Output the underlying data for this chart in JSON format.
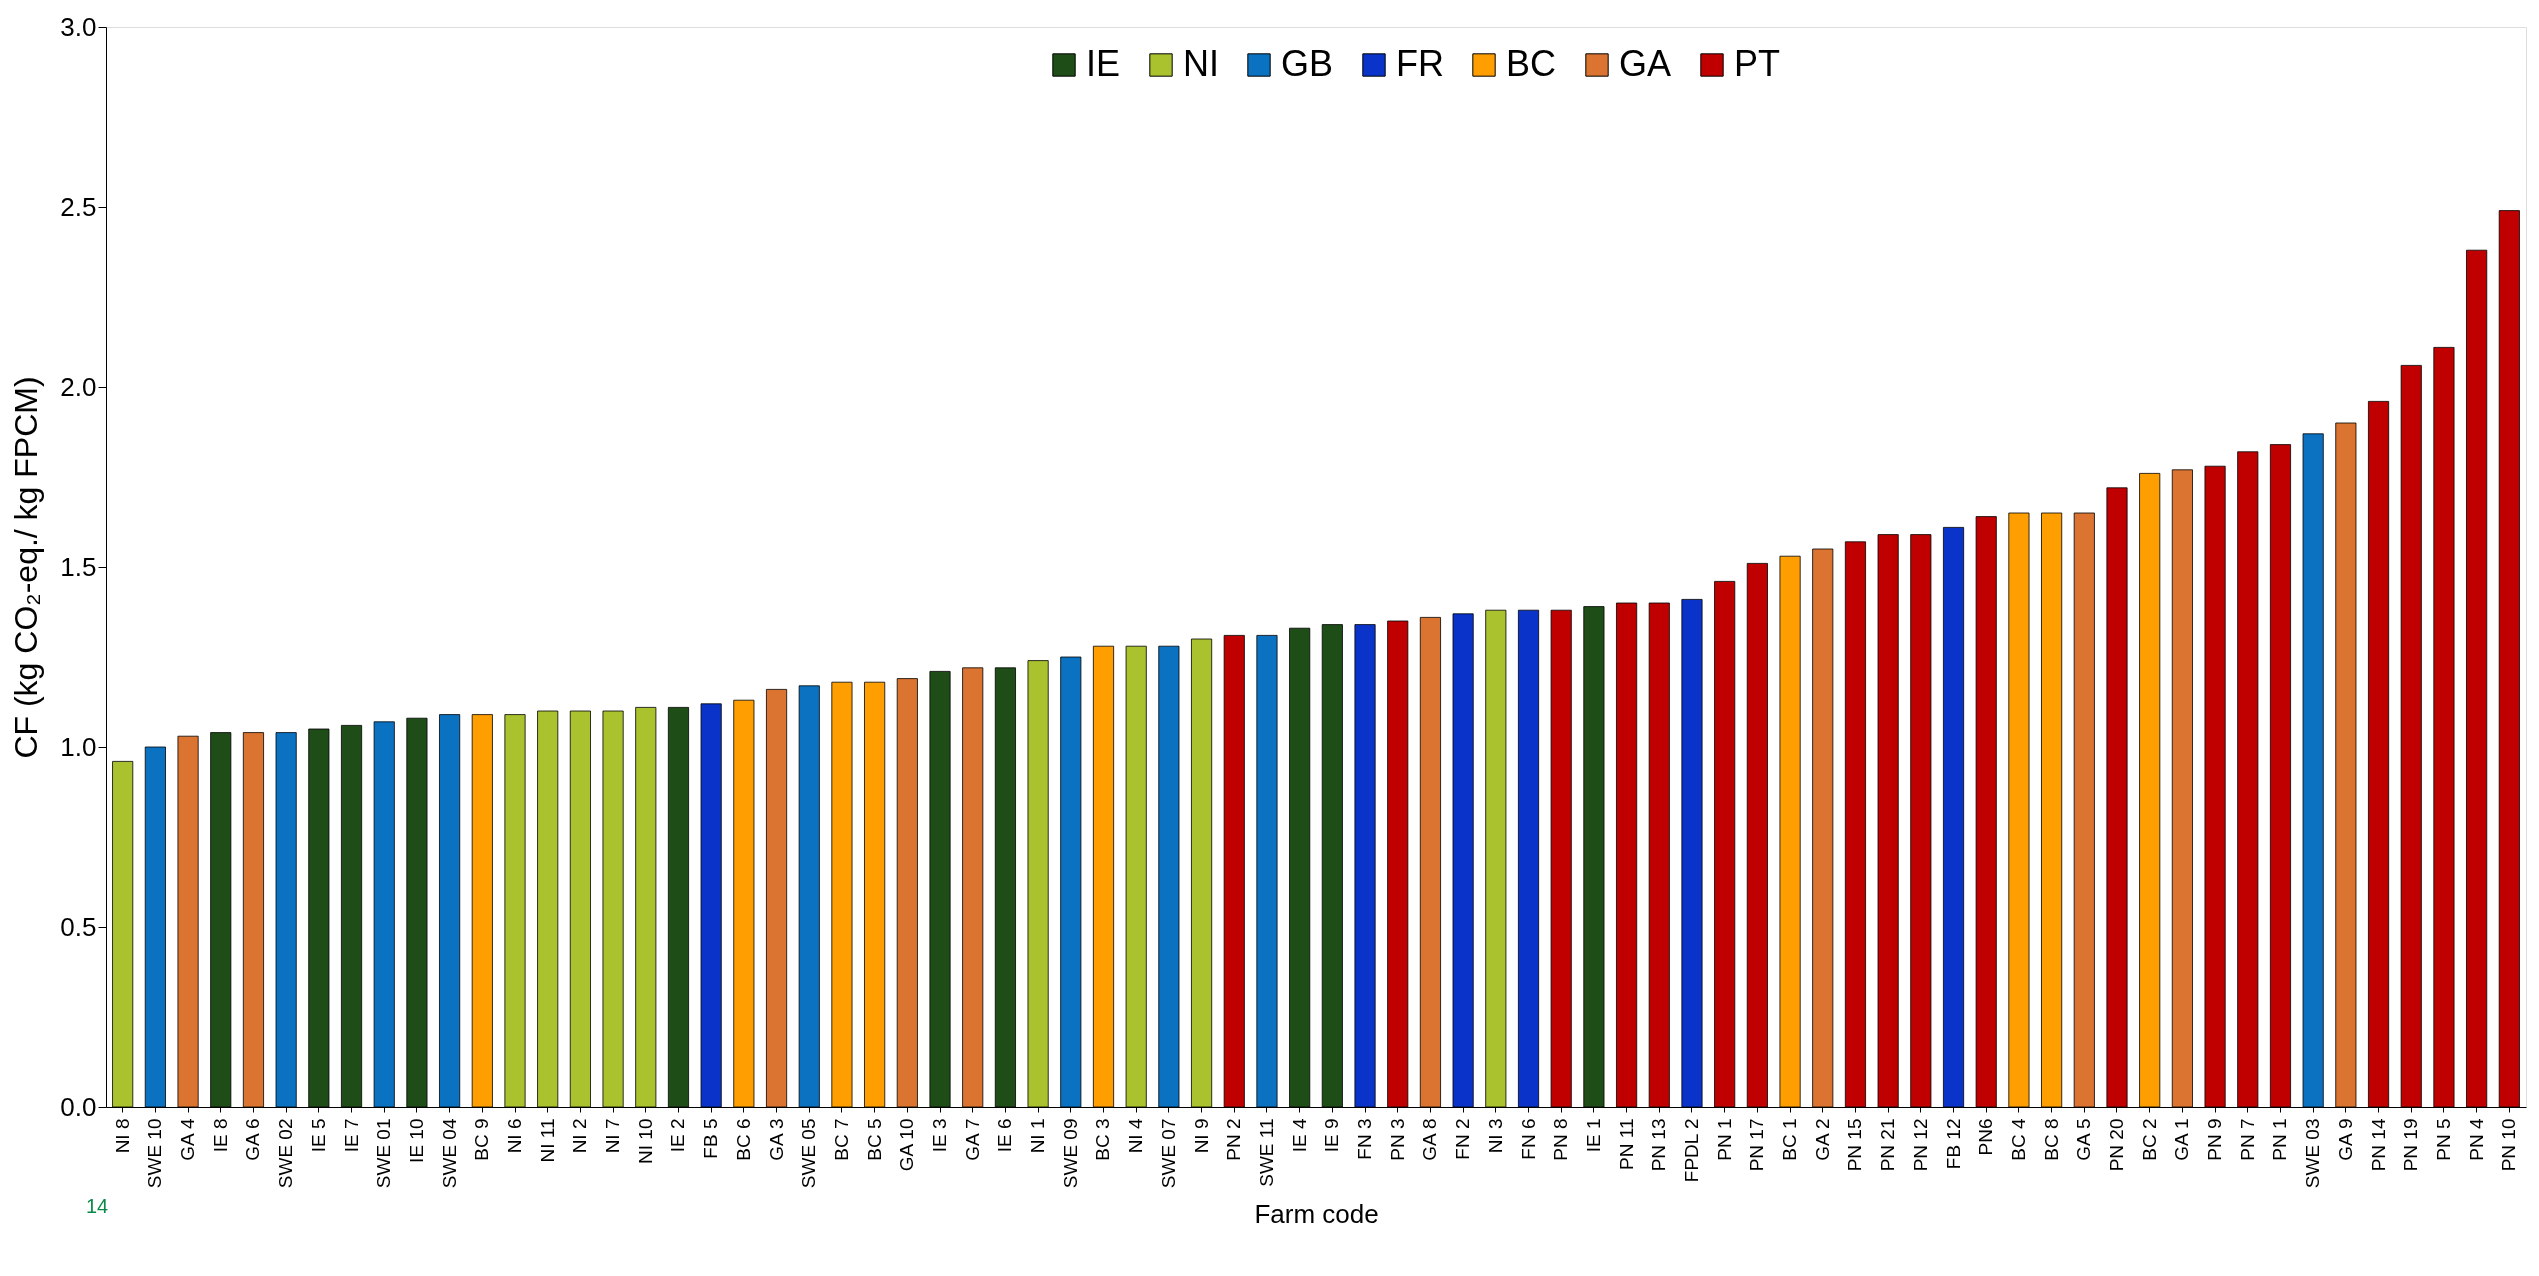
{
  "chart_data": {
    "type": "bar",
    "xlabel": "Farm code",
    "ylabel": "CF (kg CO₂-eq./ kg FPCM)",
    "categories": [
      "NI 8",
      "SWE 10",
      "GA 4",
      "IE 8",
      "GA 6",
      "SWE 02",
      "IE 5",
      "IE 7",
      "SWE 01",
      "IE 10",
      "SWE 04",
      "BC 9",
      "NI 6",
      "NI 11",
      "NI 2",
      "NI 7",
      "NI 10",
      "IE 2",
      "FB 5",
      "BC 6",
      "GA 3",
      "SWE 05",
      "BC 7",
      "BC 5",
      "GA 10",
      "IE 3",
      "GA 7",
      "IE 6",
      "NI 1",
      "SWE 09",
      "BC 3",
      "NI 4",
      "SWE 07",
      "NI 9",
      "PN 2",
      "SWE 11",
      "IE 4",
      "IE 9",
      "FN 3",
      "PN 3",
      "GA 8",
      "FN 2",
      "NI 3",
      "FN 6",
      "PN 8",
      "IE 1",
      "PN 11",
      "PN 13",
      "FPDL 2",
      "PN 1",
      "PN 17",
      "BC 1",
      "GA 2",
      "PN 15",
      "PN 21",
      "PN 12",
      "FB 12",
      "PN6",
      "BC 4",
      "BC 8",
      "GA 5",
      "PN 20",
      "BC 2",
      "GA 1",
      "PN 9",
      "PN 7",
      "PN 1",
      "SWE 03",
      "GA 9",
      "PN 14",
      "PN 19",
      "PN 5",
      "PN 4",
      "PN 10"
    ],
    "series": [
      {
        "name": "IE",
        "color": "#1e4d18",
        "values": [
          null,
          null,
          null,
          1.04,
          null,
          null,
          1.05,
          1.06,
          null,
          1.08,
          null,
          null,
          null,
          null,
          null,
          null,
          null,
          1.11,
          null,
          null,
          null,
          null,
          null,
          null,
          null,
          1.21,
          null,
          1.22,
          null,
          null,
          null,
          null,
          null,
          null,
          null,
          null,
          1.33,
          1.34,
          null,
          null,
          null,
          null,
          null,
          null,
          null,
          1.39,
          null,
          null,
          null,
          null,
          null,
          null,
          null,
          null,
          null,
          null,
          null,
          null,
          null,
          null,
          null,
          null,
          null,
          null,
          null,
          null,
          null,
          null,
          null,
          null,
          null,
          null,
          null,
          null
        ]
      },
      {
        "name": "NI",
        "color": "#aac22e",
        "values": [
          0.96,
          null,
          null,
          null,
          null,
          null,
          null,
          null,
          null,
          null,
          null,
          null,
          1.09,
          1.1,
          1.1,
          1.1,
          1.11,
          null,
          null,
          null,
          null,
          null,
          null,
          null,
          null,
          null,
          null,
          null,
          1.24,
          null,
          null,
          1.28,
          null,
          1.3,
          null,
          null,
          null,
          null,
          null,
          null,
          null,
          null,
          1.38,
          null,
          null,
          null,
          null,
          null,
          null,
          null,
          null,
          null,
          null,
          null,
          null,
          null,
          null,
          null,
          null,
          null,
          null,
          null,
          null,
          null,
          null,
          null,
          null,
          null,
          null,
          null,
          null,
          null,
          null,
          null
        ]
      },
      {
        "name": "GB",
        "color": "#0b72c2",
        "values": [
          null,
          1.0,
          null,
          null,
          null,
          1.04,
          null,
          null,
          1.07,
          null,
          1.09,
          null,
          null,
          null,
          null,
          null,
          null,
          null,
          null,
          null,
          null,
          1.17,
          null,
          null,
          null,
          null,
          null,
          null,
          null,
          1.25,
          null,
          null,
          1.28,
          null,
          null,
          1.31,
          null,
          null,
          null,
          null,
          null,
          null,
          null,
          null,
          null,
          null,
          null,
          null,
          null,
          null,
          null,
          null,
          null,
          null,
          null,
          null,
          null,
          null,
          null,
          null,
          null,
          null,
          null,
          null,
          null,
          null,
          null,
          1.87,
          null,
          null,
          null,
          null,
          null,
          null
        ]
      },
      {
        "name": "FR",
        "color": "#0a34c9",
        "values": [
          null,
          null,
          null,
          null,
          null,
          null,
          null,
          null,
          null,
          null,
          null,
          null,
          null,
          null,
          null,
          null,
          null,
          null,
          1.12,
          null,
          null,
          null,
          null,
          null,
          null,
          null,
          null,
          null,
          null,
          null,
          null,
          null,
          null,
          null,
          null,
          null,
          null,
          null,
          1.34,
          null,
          null,
          1.37,
          null,
          1.38,
          null,
          null,
          null,
          null,
          1.41,
          null,
          null,
          null,
          null,
          null,
          null,
          null,
          1.61,
          null,
          null,
          null,
          null,
          null,
          null,
          null,
          null,
          null,
          null,
          null,
          null,
          null,
          null,
          null,
          null,
          null
        ]
      },
      {
        "name": "BC",
        "color": "#ff9e00",
        "values": [
          null,
          null,
          null,
          null,
          null,
          null,
          null,
          null,
          null,
          null,
          null,
          1.09,
          null,
          null,
          null,
          null,
          null,
          null,
          null,
          1.13,
          null,
          null,
          1.18,
          1.18,
          null,
          null,
          null,
          null,
          null,
          null,
          1.28,
          null,
          null,
          null,
          null,
          null,
          null,
          null,
          null,
          null,
          null,
          null,
          null,
          null,
          null,
          null,
          null,
          null,
          null,
          null,
          null,
          1.53,
          null,
          null,
          null,
          null,
          null,
          null,
          1.65,
          1.65,
          null,
          null,
          1.76,
          null,
          null,
          null,
          null,
          null,
          null,
          null,
          null,
          null,
          null,
          null
        ]
      },
      {
        "name": "GA",
        "color": "#db7430",
        "values": [
          null,
          null,
          1.03,
          null,
          1.04,
          null,
          null,
          null,
          null,
          null,
          null,
          null,
          null,
          null,
          null,
          null,
          null,
          null,
          null,
          null,
          1.16,
          null,
          null,
          null,
          1.19,
          null,
          1.22,
          null,
          null,
          null,
          null,
          null,
          null,
          null,
          null,
          null,
          null,
          null,
          null,
          null,
          1.36,
          null,
          null,
          null,
          null,
          null,
          null,
          null,
          null,
          null,
          null,
          null,
          1.55,
          null,
          null,
          null,
          null,
          null,
          null,
          null,
          1.65,
          null,
          null,
          1.77,
          null,
          null,
          null,
          null,
          1.9,
          null,
          null,
          null,
          null,
          null
        ]
      },
      {
        "name": "PT",
        "color": "#c00000",
        "values": [
          null,
          null,
          null,
          null,
          null,
          null,
          null,
          null,
          null,
          null,
          null,
          null,
          null,
          null,
          null,
          null,
          null,
          null,
          null,
          null,
          null,
          null,
          null,
          null,
          null,
          null,
          null,
          null,
          null,
          null,
          null,
          null,
          null,
          null,
          1.31,
          null,
          null,
          null,
          null,
          1.35,
          null,
          null,
          null,
          null,
          1.38,
          null,
          1.4,
          1.4,
          null,
          1.46,
          1.51,
          null,
          null,
          1.57,
          1.59,
          1.59,
          null,
          1.64,
          null,
          null,
          null,
          1.72,
          null,
          null,
          1.78,
          1.82,
          1.84,
          null,
          null,
          1.96,
          2.06,
          2.11,
          2.38,
          2.49
        ]
      }
    ],
    "ylim": [
      0,
      3
    ],
    "yticks": [
      {
        "value": 0,
        "label": "0.0"
      },
      {
        "value": 0.5,
        "label": "0.5"
      },
      {
        "value": 1,
        "label": "1.0"
      },
      {
        "value": 1.5,
        "label": "1.5"
      },
      {
        "value": 2,
        "label": "2.0"
      },
      {
        "value": 2.5,
        "label": "2.5"
      },
      {
        "value": 3,
        "label": "3.0"
      }
    ],
    "grid": false,
    "legend": "top",
    "annotations": [
      "14"
    ]
  }
}
